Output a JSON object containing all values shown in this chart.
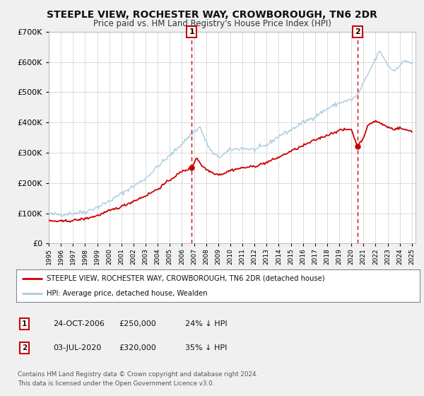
{
  "title": "STEEPLE VIEW, ROCHESTER WAY, CROWBOROUGH, TN6 2DR",
  "subtitle": "Price paid vs. HM Land Registry's House Price Index (HPI)",
  "title_fontsize": 10,
  "subtitle_fontsize": 8.5,
  "ylim": [
    0,
    700000
  ],
  "xlim_start": 1995.0,
  "xlim_end": 2025.3,
  "yticks": [
    0,
    100000,
    200000,
    300000,
    400000,
    500000,
    600000,
    700000
  ],
  "ytick_labels": [
    "£0",
    "£100K",
    "£200K",
    "£300K",
    "£400K",
    "£500K",
    "£600K",
    "£700K"
  ],
  "hpi_color": "#a8cce0",
  "price_color": "#cc0000",
  "dot_color": "#cc0000",
  "vline_color": "#cc0000",
  "marker1_date": 2006.81,
  "marker1_price": 250000,
  "marker1_label": "1",
  "marker2_date": 2020.5,
  "marker2_price": 320000,
  "marker2_label": "2",
  "legend_line1": "STEEPLE VIEW, ROCHESTER WAY, CROWBOROUGH, TN6 2DR (detached house)",
  "legend_line2": "HPI: Average price, detached house, Wealden",
  "footer": "Contains HM Land Registry data © Crown copyright and database right 2024.\nThis data is licensed under the Open Government Licence v3.0.",
  "bg_color": "#f0f0f0",
  "plot_bg_color": "#ffffff",
  "grid_color": "#cccccc"
}
